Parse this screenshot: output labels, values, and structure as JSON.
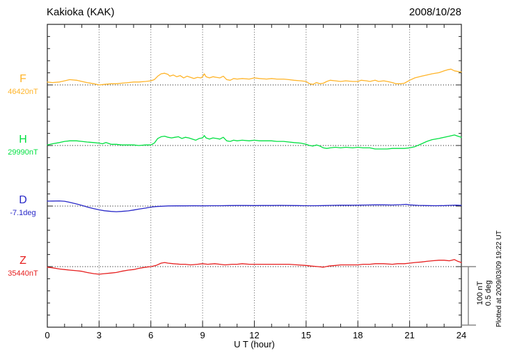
{
  "header": {
    "title": "Kakioka (KAK)",
    "date": "2008/10/28"
  },
  "xaxis": {
    "label": "U T (hour)"
  },
  "scale_bar": {
    "labels": [
      "100 nT",
      "0.5 deg"
    ]
  },
  "footer_note": "Plotted at 2009/03/09 19:22 UT",
  "chart_data": {
    "type": "line",
    "title": "Kakioka (KAK)",
    "subtitle": "2008/10/28",
    "xlabel": "U T (hour)",
    "x_range": [
      0,
      24
    ],
    "x_ticks": [
      0,
      3,
      6,
      9,
      12,
      15,
      18,
      21,
      24
    ],
    "grid": "dotted vertical at 3h intervals, dotted horizontal baseline per trace",
    "scale": {
      "nT_per_division": 100,
      "deg_per_division": 0.5
    },
    "series": [
      {
        "name": "F",
        "baseline_label": "46420nT",
        "baseline_value": 46420,
        "unit": "nT",
        "color": "#FFB428",
        "points": [
          [
            0,
            5
          ],
          [
            0.3,
            4
          ],
          [
            0.7,
            5
          ],
          [
            1,
            7
          ],
          [
            1.3,
            9
          ],
          [
            1.7,
            8
          ],
          [
            2,
            6
          ],
          [
            2.3,
            4
          ],
          [
            2.7,
            2
          ],
          [
            3,
            0
          ],
          [
            3.3,
            1
          ],
          [
            3.7,
            2
          ],
          [
            4,
            2
          ],
          [
            4.3,
            3
          ],
          [
            4.7,
            4
          ],
          [
            5,
            5
          ],
          [
            5.3,
            5
          ],
          [
            5.7,
            6
          ],
          [
            6,
            7
          ],
          [
            6.2,
            9
          ],
          [
            6.4,
            15
          ],
          [
            6.6,
            19
          ],
          [
            6.8,
            20
          ],
          [
            7,
            18
          ],
          [
            7.1,
            15
          ],
          [
            7.3,
            17
          ],
          [
            7.5,
            14
          ],
          [
            7.7,
            16
          ],
          [
            7.9,
            12
          ],
          [
            8.1,
            15
          ],
          [
            8.3,
            13
          ],
          [
            8.5,
            11
          ],
          [
            8.7,
            13
          ],
          [
            8.9,
            12
          ],
          [
            9,
            14
          ],
          [
            9.1,
            19
          ],
          [
            9.2,
            14
          ],
          [
            9.4,
            12
          ],
          [
            9.6,
            14
          ],
          [
            9.8,
            13
          ],
          [
            10,
            12
          ],
          [
            10.2,
            15
          ],
          [
            10.4,
            9
          ],
          [
            10.6,
            8
          ],
          [
            10.8,
            11
          ],
          [
            11,
            10
          ],
          [
            11.3,
            11
          ],
          [
            11.7,
            10
          ],
          [
            12,
            12
          ],
          [
            12.3,
            11
          ],
          [
            12.7,
            10
          ],
          [
            13,
            11
          ],
          [
            13.3,
            10
          ],
          [
            13.7,
            10
          ],
          [
            14,
            9
          ],
          [
            14.3,
            8
          ],
          [
            14.7,
            7
          ],
          [
            15,
            6
          ],
          [
            15.2,
            2
          ],
          [
            15.4,
            1
          ],
          [
            15.6,
            4
          ],
          [
            15.8,
            2
          ],
          [
            16,
            3
          ],
          [
            16.2,
            6
          ],
          [
            16.4,
            8
          ],
          [
            16.7,
            7
          ],
          [
            17,
            6
          ],
          [
            17.3,
            7
          ],
          [
            17.7,
            6
          ],
          [
            18,
            6
          ],
          [
            18.2,
            8
          ],
          [
            18.5,
            7
          ],
          [
            18.7,
            6
          ],
          [
            19,
            8
          ],
          [
            19.2,
            6
          ],
          [
            19.5,
            7
          ],
          [
            19.7,
            6
          ],
          [
            20,
            4
          ],
          [
            20.2,
            2
          ],
          [
            20.5,
            2
          ],
          [
            20.7,
            3
          ],
          [
            21,
            8
          ],
          [
            21.3,
            12
          ],
          [
            21.7,
            15
          ],
          [
            22,
            17
          ],
          [
            22.3,
            19
          ],
          [
            22.7,
            21
          ],
          [
            23,
            24
          ],
          [
            23.2,
            26
          ],
          [
            23.4,
            27
          ],
          [
            23.6,
            24
          ],
          [
            23.8,
            23
          ],
          [
            24,
            22
          ]
        ]
      },
      {
        "name": "H",
        "baseline_label": "29990nT",
        "baseline_value": 29990,
        "unit": "nT",
        "color": "#00E040",
        "points": [
          [
            0,
            1
          ],
          [
            0.3,
            3
          ],
          [
            0.7,
            5
          ],
          [
            1,
            7
          ],
          [
            1.3,
            8
          ],
          [
            1.7,
            8
          ],
          [
            2,
            7
          ],
          [
            2.3,
            6
          ],
          [
            2.7,
            5
          ],
          [
            3,
            4
          ],
          [
            3.2,
            3
          ],
          [
            3.4,
            5
          ],
          [
            3.7,
            2
          ],
          [
            4,
            2
          ],
          [
            4.3,
            1
          ],
          [
            4.7,
            1
          ],
          [
            5,
            1
          ],
          [
            5.3,
            0
          ],
          [
            5.7,
            1
          ],
          [
            6,
            1
          ],
          [
            6.2,
            4
          ],
          [
            6.4,
            12
          ],
          [
            6.6,
            15
          ],
          [
            6.8,
            16
          ],
          [
            7,
            14
          ],
          [
            7.2,
            13
          ],
          [
            7.4,
            14
          ],
          [
            7.6,
            15
          ],
          [
            7.8,
            12
          ],
          [
            8,
            14
          ],
          [
            8.2,
            13
          ],
          [
            8.4,
            11
          ],
          [
            8.6,
            9
          ],
          [
            8.8,
            12
          ],
          [
            9,
            13
          ],
          [
            9.1,
            17
          ],
          [
            9.2,
            13
          ],
          [
            9.4,
            11
          ],
          [
            9.6,
            13
          ],
          [
            9.8,
            12
          ],
          [
            10,
            11
          ],
          [
            10.2,
            14
          ],
          [
            10.4,
            8
          ],
          [
            10.6,
            7
          ],
          [
            10.8,
            9
          ],
          [
            11,
            8
          ],
          [
            11.3,
            9
          ],
          [
            11.7,
            8
          ],
          [
            12,
            9
          ],
          [
            12.3,
            8
          ],
          [
            12.7,
            8
          ],
          [
            13,
            8
          ],
          [
            13.3,
            7
          ],
          [
            13.7,
            7
          ],
          [
            14,
            6
          ],
          [
            14.3,
            5
          ],
          [
            14.7,
            4
          ],
          [
            15,
            2
          ],
          [
            15.2,
            0
          ],
          [
            15.4,
            -1
          ],
          [
            15.6,
            1
          ],
          [
            15.8,
            -1
          ],
          [
            16,
            -4
          ],
          [
            16.2,
            -5
          ],
          [
            16.4,
            -4
          ],
          [
            16.7,
            -3
          ],
          [
            17,
            -4
          ],
          [
            17.3,
            -3
          ],
          [
            17.7,
            -4
          ],
          [
            18,
            -3
          ],
          [
            18.3,
            -4
          ],
          [
            18.7,
            -4
          ],
          [
            19,
            -6
          ],
          [
            19.3,
            -6
          ],
          [
            19.7,
            -6
          ],
          [
            20,
            -5
          ],
          [
            20.3,
            -5
          ],
          [
            20.7,
            -5
          ],
          [
            21,
            -4
          ],
          [
            21.3,
            -2
          ],
          [
            21.7,
            3
          ],
          [
            22,
            7
          ],
          [
            22.3,
            10
          ],
          [
            22.7,
            12
          ],
          [
            23,
            14
          ],
          [
            23.3,
            16
          ],
          [
            23.6,
            18
          ],
          [
            23.8,
            16
          ],
          [
            24,
            14
          ]
        ]
      },
      {
        "name": "D",
        "baseline_label": "-7.1deg",
        "baseline_value": -7.1,
        "unit": "deg",
        "color": "#2828C8",
        "points": [
          [
            0,
            0.042
          ],
          [
            0.3,
            0.043
          ],
          [
            0.7,
            0.044
          ],
          [
            1,
            0.041
          ],
          [
            1.3,
            0.032
          ],
          [
            1.7,
            0.018
          ],
          [
            2,
            0.006
          ],
          [
            2.3,
            -0.008
          ],
          [
            2.7,
            -0.022
          ],
          [
            3,
            -0.032
          ],
          [
            3.3,
            -0.04
          ],
          [
            3.7,
            -0.046
          ],
          [
            4,
            -0.048
          ],
          [
            4.3,
            -0.046
          ],
          [
            4.7,
            -0.041
          ],
          [
            5,
            -0.034
          ],
          [
            5.3,
            -0.026
          ],
          [
            5.7,
            -0.017
          ],
          [
            6,
            -0.009
          ],
          [
            6.3,
            -0.004
          ],
          [
            6.7,
            -0.001
          ],
          [
            7,
            0.001
          ],
          [
            7.5,
            0.002
          ],
          [
            8,
            0.002
          ],
          [
            8.5,
            0.003
          ],
          [
            9,
            0.002
          ],
          [
            9.5,
            0.003
          ],
          [
            10,
            0.003
          ],
          [
            10.5,
            0.004
          ],
          [
            11,
            0.005
          ],
          [
            11.5,
            0.005
          ],
          [
            12,
            0.004
          ],
          [
            12.5,
            0.005
          ],
          [
            13,
            0.005
          ],
          [
            13.5,
            0.006
          ],
          [
            14,
            0.005
          ],
          [
            14.5,
            0.004
          ],
          [
            15,
            0.003
          ],
          [
            15.5,
            0.003
          ],
          [
            16,
            0.004
          ],
          [
            16.5,
            0.006
          ],
          [
            17,
            0.007
          ],
          [
            17.5,
            0.007
          ],
          [
            18,
            0.008
          ],
          [
            18.5,
            0.009
          ],
          [
            19,
            0.01
          ],
          [
            19.5,
            0.01
          ],
          [
            20,
            0.009
          ],
          [
            20.5,
            0.012
          ],
          [
            20.8,
            0.015
          ],
          [
            21,
            0.01
          ],
          [
            21.5,
            0.006
          ],
          [
            22,
            0.004
          ],
          [
            22.5,
            0.003
          ],
          [
            23,
            0.004
          ],
          [
            23.3,
            0.006
          ],
          [
            23.7,
            0.008
          ],
          [
            24,
            0.006
          ]
        ]
      },
      {
        "name": "Z",
        "baseline_label": "35440nT",
        "baseline_value": 35440,
        "unit": "nT",
        "color": "#E61E1E",
        "points": [
          [
            0,
            -1
          ],
          [
            0.3,
            -2
          ],
          [
            0.7,
            -4
          ],
          [
            1,
            -5
          ],
          [
            1.3,
            -6
          ],
          [
            1.7,
            -7
          ],
          [
            2,
            -8
          ],
          [
            2.3,
            -10
          ],
          [
            2.7,
            -12
          ],
          [
            3,
            -13
          ],
          [
            3.3,
            -12
          ],
          [
            3.7,
            -11
          ],
          [
            4,
            -10
          ],
          [
            4.3,
            -8
          ],
          [
            4.7,
            -6
          ],
          [
            5,
            -5
          ],
          [
            5.3,
            -3
          ],
          [
            5.7,
            -1
          ],
          [
            6,
            0
          ],
          [
            6.3,
            2
          ],
          [
            6.6,
            6
          ],
          [
            6.8,
            7
          ],
          [
            7,
            6
          ],
          [
            7.3,
            5
          ],
          [
            7.7,
            4
          ],
          [
            8,
            4
          ],
          [
            8.3,
            3
          ],
          [
            8.7,
            4
          ],
          [
            9,
            5
          ],
          [
            9.3,
            4
          ],
          [
            9.7,
            5
          ],
          [
            10,
            4
          ],
          [
            10.3,
            3
          ],
          [
            10.7,
            4
          ],
          [
            11,
            4
          ],
          [
            11.3,
            5
          ],
          [
            11.7,
            4
          ],
          [
            12,
            4
          ],
          [
            12.5,
            4
          ],
          [
            13,
            4
          ],
          [
            13.5,
            4
          ],
          [
            14,
            4
          ],
          [
            14.5,
            3
          ],
          [
            15,
            2
          ],
          [
            15.3,
            1
          ],
          [
            15.7,
            0
          ],
          [
            16,
            -1
          ],
          [
            16.3,
            1
          ],
          [
            16.7,
            2
          ],
          [
            17,
            3
          ],
          [
            17.5,
            3
          ],
          [
            18,
            3
          ],
          [
            18.3,
            4
          ],
          [
            18.7,
            4
          ],
          [
            19,
            5
          ],
          [
            19.5,
            5
          ],
          [
            20,
            4
          ],
          [
            20.3,
            5
          ],
          [
            20.7,
            5
          ],
          [
            21,
            6
          ],
          [
            21.3,
            7
          ],
          [
            21.7,
            8
          ],
          [
            22,
            9
          ],
          [
            22.3,
            10
          ],
          [
            22.7,
            11
          ],
          [
            23,
            11
          ],
          [
            23.3,
            10
          ],
          [
            23.6,
            12
          ],
          [
            23.8,
            9
          ],
          [
            24,
            7
          ]
        ]
      }
    ]
  },
  "colors": {
    "axis": "#222222",
    "grid": "#555555",
    "scale_bar": "#888888",
    "text": "#000000"
  }
}
